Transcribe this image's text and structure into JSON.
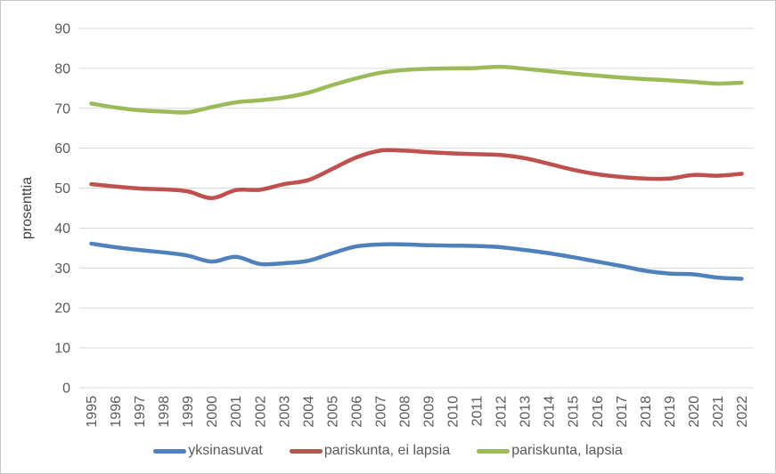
{
  "chart_data": {
    "type": "line",
    "title": "",
    "xlabel": "",
    "ylabel": "prosenttia",
    "ylim": [
      0,
      90
    ],
    "ytick_step": 10,
    "grid": "horizontal-only",
    "legend_position": "bottom-center",
    "categories": [
      "1995",
      "1996",
      "1997",
      "1998",
      "1999",
      "2000",
      "2001",
      "2002",
      "2003",
      "2004",
      "2005",
      "2006",
      "2007",
      "2008",
      "2009",
      "2010",
      "2011",
      "2012",
      "2013",
      "2014",
      "2015",
      "2016",
      "2017",
      "2018",
      "2019",
      "2020",
      "2021",
      "2022"
    ],
    "series": [
      {
        "name": "yksinasuvat",
        "color": "#4F81BD",
        "values": [
          36.1,
          35.2,
          34.5,
          33.9,
          33.1,
          31.6,
          32.8,
          31.0,
          31.2,
          31.8,
          33.7,
          35.4,
          35.9,
          35.9,
          35.7,
          35.6,
          35.5,
          35.2,
          34.5,
          33.7,
          32.7,
          31.6,
          30.5,
          29.3,
          28.6,
          28.4,
          27.6,
          27.3
        ]
      },
      {
        "name": "pariskunta, ei lapsia",
        "color": "#C0504D",
        "values": [
          51.0,
          50.4,
          49.9,
          49.7,
          49.2,
          47.5,
          49.5,
          49.6,
          51.0,
          52.0,
          54.8,
          57.7,
          59.4,
          59.4,
          59.0,
          58.7,
          58.5,
          58.3,
          57.5,
          56.1,
          54.6,
          53.5,
          52.8,
          52.4,
          52.4,
          53.3,
          53.1,
          53.6
        ]
      },
      {
        "name": "pariskunta, lapsia",
        "color": "#9BBB59",
        "values": [
          71.2,
          70.2,
          69.5,
          69.2,
          69.0,
          70.3,
          71.5,
          72.0,
          72.7,
          73.9,
          75.8,
          77.5,
          78.9,
          79.6,
          79.9,
          80.0,
          80.1,
          80.4,
          79.9,
          79.3,
          78.7,
          78.2,
          77.7,
          77.3,
          77.0,
          76.6,
          76.2,
          76.4
        ]
      }
    ]
  },
  "colors": {
    "gridline": "#D9D9D9",
    "axis_text": "#595959",
    "border": "#C9C9C9",
    "background": "#FFFFFF"
  }
}
